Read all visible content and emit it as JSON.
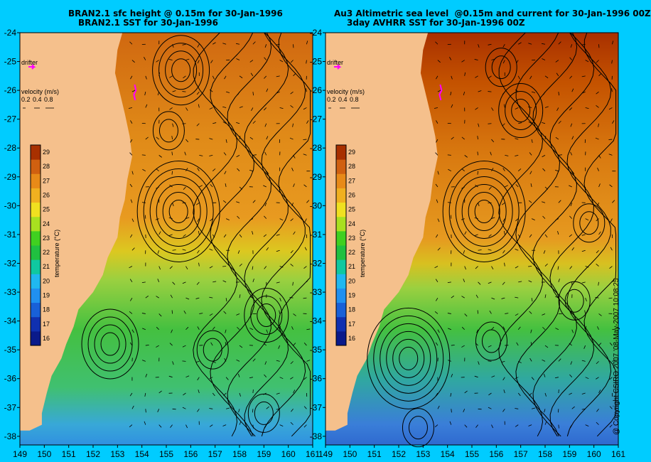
{
  "left": {
    "title1": "BRAN2.1 sfc height @ 0.15m for 30-Jan-1996",
    "title2": "BRAN2.1 SST for 30-Jan-1996",
    "drifter_label": "drifter",
    "velocity_label": "velocity (m/s)",
    "velocity_scale": [
      "0.2",
      "0.4",
      "0.8"
    ],
    "temp_axis_label": "temperature (°C)",
    "temp_ticks": [
      "16",
      "17",
      "18",
      "19",
      "20",
      "21",
      "22",
      "23",
      "24",
      "25",
      "26",
      "27",
      "28",
      "29"
    ],
    "lat_ticks": [
      "-24",
      "-25",
      "-26",
      "-27",
      "-28",
      "-29",
      "-30",
      "-31",
      "-32",
      "-33",
      "-34",
      "-35",
      "-36",
      "-37",
      "-38"
    ],
    "lon_ticks": [
      "149",
      "150",
      "151",
      "152",
      "153",
      "154",
      "155",
      "156",
      "157",
      "158",
      "159",
      "160",
      "161"
    ],
    "eddies": [
      {
        "lon": 155.6,
        "lat": -25.3,
        "rings": 4
      },
      {
        "lon": 155.1,
        "lat": -27.4,
        "rings": 2
      },
      {
        "lon": 155.5,
        "lat": -30.2,
        "rings": 6
      },
      {
        "lon": 159.1,
        "lat": -33.8,
        "rings": 3
      },
      {
        "lon": 152.7,
        "lat": -34.8,
        "rings": 4
      },
      {
        "lon": 156.9,
        "lat": -35.0,
        "rings": 2
      },
      {
        "lon": 159.0,
        "lat": -37.2,
        "rings": 2
      }
    ]
  },
  "right": {
    "title1": "Au3 Altimetric sea level  @0.15m and current for 30-Jan-1996 00Z",
    "title2": "3day AVHRR SST for 30-Jan-1996 00Z",
    "drifter_label": "drifter",
    "velocity_label": "velocity (m/s)",
    "velocity_scale": [
      "0.2",
      "0.4",
      "0.8"
    ],
    "temp_axis_label": "temperature (°C)",
    "temp_ticks": [
      "16",
      "17",
      "18",
      "19",
      "20",
      "21",
      "22",
      "23",
      "24",
      "25",
      "26",
      "27",
      "28",
      "29"
    ],
    "lat_ticks": [
      "-24",
      "-25",
      "-26",
      "-27",
      "-28",
      "-29",
      "-30",
      "-31",
      "-32",
      "-33",
      "-34",
      "-35",
      "-36",
      "-37",
      "-38"
    ],
    "lon_ticks": [
      "149",
      "150",
      "151",
      "152",
      "153",
      "154",
      "155",
      "156",
      "157",
      "158",
      "159",
      "160",
      "161"
    ],
    "eddies": [
      {
        "lon": 156.2,
        "lat": -25.2,
        "rings": 2
      },
      {
        "lon": 157.0,
        "lat": -26.7,
        "rings": 3
      },
      {
        "lon": 155.5,
        "lat": -30.2,
        "rings": 6
      },
      {
        "lon": 159.8,
        "lat": -30.6,
        "rings": 2
      },
      {
        "lon": 152.4,
        "lat": -35.3,
        "rings": 6
      },
      {
        "lon": 155.8,
        "lat": -34.7,
        "rings": 2
      },
      {
        "lon": 152.8,
        "lat": -37.7,
        "rings": 2
      },
      {
        "lon": 159.2,
        "lat": -33.3,
        "rings": 2
      }
    ]
  },
  "credit": "@ Copyright CSIRO 2007 '08-May-2007 10:08:25",
  "colors": {
    "background": "#00ccff",
    "land": "#f5c08c",
    "drifter": "#ff00ff"
  }
}
